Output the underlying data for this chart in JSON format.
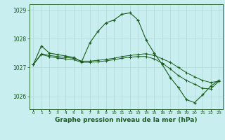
{
  "title": "Graphe pression niveau de la mer (hPa)",
  "bg_color": "#c8eef0",
  "grid_color": "#b0d8d8",
  "line_color": "#1a5c1a",
  "hours": [
    0,
    1,
    2,
    3,
    4,
    5,
    6,
    7,
    8,
    9,
    10,
    11,
    12,
    13,
    14,
    15,
    16,
    17,
    18,
    19,
    20,
    21,
    22,
    23
  ],
  "main_series": [
    1027.1,
    1027.75,
    1027.5,
    1027.45,
    1027.4,
    1027.35,
    1027.2,
    1027.85,
    1028.25,
    1028.55,
    1028.65,
    1028.85,
    1028.9,
    1028.65,
    1027.95,
    1027.5,
    1027.1,
    1026.65,
    1026.3,
    1025.88,
    1025.78,
    1026.05,
    1026.35,
    1026.55
  ],
  "series2": [
    1027.1,
    1027.48,
    1027.42,
    1027.38,
    1027.35,
    1027.32,
    1027.22,
    1027.22,
    1027.25,
    1027.28,
    1027.32,
    1027.38,
    1027.42,
    1027.45,
    1027.48,
    1027.42,
    1027.3,
    1027.18,
    1027.0,
    1026.82,
    1026.68,
    1026.55,
    1026.48,
    1026.52
  ],
  "series3": [
    1027.1,
    1027.45,
    1027.38,
    1027.33,
    1027.3,
    1027.27,
    1027.18,
    1027.18,
    1027.2,
    1027.23,
    1027.27,
    1027.32,
    1027.36,
    1027.38,
    1027.38,
    1027.3,
    1027.15,
    1026.95,
    1026.72,
    1026.55,
    1026.42,
    1026.28,
    1026.25,
    1026.52
  ],
  "ylim_min": 1025.55,
  "ylim_max": 1029.2,
  "yticks": [
    1026,
    1027,
    1028,
    1029
  ],
  "title_fontsize": 6.5
}
